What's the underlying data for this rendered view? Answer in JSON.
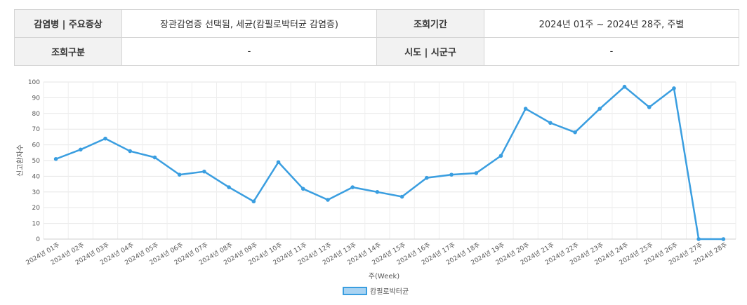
{
  "info": {
    "row1": {
      "label1": "감염병 | 주요증상",
      "value1": "장관감염증 선택됨, 세균(캄필로박터균 감염증)",
      "label2": "조회기간",
      "value2": "2024년 01주 ~ 2024년 28주, 주별"
    },
    "row2": {
      "label1": "조회구분",
      "value1": "-",
      "label2": "시도 | 시군구",
      "value2": "-"
    }
  },
  "chart_data": {
    "type": "line",
    "title": "",
    "xlabel": "주(Week)",
    "ylabel": "신고환자수",
    "ylim": [
      0,
      100
    ],
    "yticks": [
      0,
      10,
      20,
      30,
      40,
      50,
      60,
      70,
      80,
      90,
      100
    ],
    "grid": true,
    "legend_position": "bottom-center",
    "categories": [
      "2024년 01주",
      "2024년 02주",
      "2024년 03주",
      "2024년 04주",
      "2024년 05주",
      "2024년 06주",
      "2024년 07주",
      "2024년 08주",
      "2024년 09주",
      "2024년 10주",
      "2024년 11주",
      "2024년 12주",
      "2024년 13주",
      "2024년 14주",
      "2024년 15주",
      "2024년 16주",
      "2024년 17주",
      "2024년 18주",
      "2024년 19주",
      "2024년 20주",
      "2024년 21주",
      "2024년 22주",
      "2024년 23주",
      "2024년 24주",
      "2024년 25주",
      "2024년 26주",
      "2024년 27주",
      "2024년 28주"
    ],
    "series": [
      {
        "name": "캄필로박터균",
        "color": "#3a9ee0",
        "values": [
          51,
          57,
          64,
          56,
          52,
          41,
          43,
          33,
          24,
          49,
          32,
          25,
          33,
          30,
          27,
          39,
          41,
          42,
          53,
          83,
          74,
          68,
          83,
          97,
          84,
          96,
          0,
          0
        ]
      }
    ]
  }
}
